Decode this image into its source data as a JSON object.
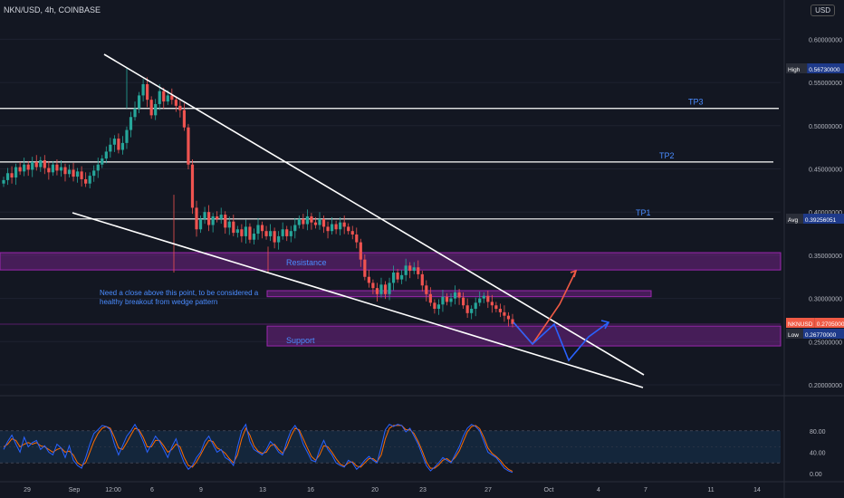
{
  "header": {
    "symbol": "NKN/USD, 4h, COINBASE",
    "currency": "USD"
  },
  "colors": {
    "background": "#131722",
    "up": "#26a69a",
    "down": "#ef5350",
    "zone": "#9c27b0",
    "projection_red": "#f05a45",
    "projection_blue": "#2962ff",
    "stoch_k": "#2962ff",
    "stoch_d": "#ff6d00"
  },
  "chart_data": {
    "type": "candlestick",
    "pair": "NKN/USD",
    "interval": "4h",
    "exchange": "COINBASE",
    "y_ticks": [
      "0.60000000",
      "0.55000000",
      "0.50000000",
      "0.45000000",
      "0.40000000",
      "0.35000000",
      "0.30000000",
      "0.25000000",
      "0.20000000"
    ],
    "y_tick_values": [
      0.6,
      0.55,
      0.5,
      0.45,
      0.4,
      0.35,
      0.3,
      0.25,
      0.2
    ],
    "x_ticks": [
      "29",
      "Sep",
      "12:00",
      "6",
      "9",
      "13",
      "16",
      "20",
      "23",
      "27",
      "Oct",
      "4",
      "7",
      "11",
      "14"
    ],
    "price_labels": [
      {
        "tag": "High",
        "value": "0.56730000"
      },
      {
        "tag": "Avg",
        "value": "0.39256051"
      },
      {
        "tag": "NKNUSD",
        "value": "0.27050000"
      },
      {
        "tag": "Low",
        "value": "0.26770000"
      }
    ],
    "levels": {
      "tp3": 0.52,
      "tp2": 0.458,
      "tp1": 0.392
    },
    "level_labels": {
      "tp3": "TP3",
      "tp2": "TP2",
      "tp1": "TP1"
    },
    "zones": {
      "resistance": {
        "label": "Resistance",
        "from": 0.333,
        "to": 0.353
      },
      "breakout": {
        "from": 0.302,
        "to": 0.309
      },
      "support": {
        "label": "Support",
        "from": 0.245,
        "to": 0.268
      }
    },
    "annotation_lines": [
      "Need a close above this point, to be considered a",
      "healthy breakout from wedge pattern"
    ],
    "closes": [
      0.437,
      0.445,
      0.44,
      0.452,
      0.447,
      0.455,
      0.449,
      0.458,
      0.452,
      0.46,
      0.451,
      0.446,
      0.455,
      0.448,
      0.452,
      0.444,
      0.449,
      0.441,
      0.447,
      0.438,
      0.433,
      0.442,
      0.448,
      0.455,
      0.462,
      0.47,
      0.478,
      0.485,
      0.472,
      0.48,
      0.495,
      0.51,
      0.52,
      0.535,
      0.548,
      0.53,
      0.512,
      0.525,
      0.54,
      0.528,
      0.535,
      0.53,
      0.523,
      0.518,
      0.498,
      0.455,
      0.405,
      0.38,
      0.392,
      0.4,
      0.385,
      0.395,
      0.392,
      0.397,
      0.382,
      0.389,
      0.376,
      0.38,
      0.372,
      0.383,
      0.368,
      0.375,
      0.385,
      0.378,
      0.372,
      0.378,
      0.365,
      0.372,
      0.38,
      0.372,
      0.378,
      0.385,
      0.392,
      0.386,
      0.395,
      0.388,
      0.385,
      0.392,
      0.383,
      0.378,
      0.386,
      0.38,
      0.388,
      0.383,
      0.378,
      0.374,
      0.365,
      0.345,
      0.325,
      0.318,
      0.312,
      0.305,
      0.316,
      0.305,
      0.318,
      0.33,
      0.322,
      0.327,
      0.338,
      0.332,
      0.336,
      0.328,
      0.315,
      0.305,
      0.295,
      0.288,
      0.293,
      0.302,
      0.296,
      0.3,
      0.307,
      0.301,
      0.292,
      0.283,
      0.288,
      0.295,
      0.3,
      0.303,
      0.296,
      0.292,
      0.288,
      0.284,
      0.28,
      0.276,
      0.2705
    ],
    "stoch_k": [
      45,
      60,
      72,
      55,
      40,
      68,
      50,
      58,
      62,
      45,
      52,
      40,
      35,
      55,
      48,
      30,
      52,
      25,
      15,
      10,
      30,
      55,
      75,
      82,
      90,
      88,
      82,
      55,
      35,
      52,
      70,
      80,
      92,
      78,
      60,
      40,
      55,
      70,
      60,
      45,
      30,
      50,
      65,
      40,
      20,
      8,
      15,
      30,
      40,
      60,
      70,
      55,
      40,
      45,
      30,
      25,
      15,
      50,
      80,
      92,
      60,
      45,
      40,
      35,
      45,
      60,
      52,
      40,
      35,
      60,
      80,
      90,
      78,
      55,
      40,
      25,
      22,
      45,
      62,
      45,
      35,
      20,
      15,
      12,
      25,
      20,
      8,
      15,
      25,
      32,
      25,
      20,
      50,
      82,
      92,
      88,
      92,
      90,
      78,
      85,
      70,
      55,
      35,
      15,
      5,
      12,
      20,
      30,
      25,
      20,
      35,
      50,
      70,
      85,
      92,
      88,
      80,
      60,
      40,
      35,
      30,
      20,
      10,
      5,
      2
    ],
    "stoch_d": [
      50,
      55,
      65,
      62,
      50,
      55,
      58,
      55,
      58,
      52,
      50,
      45,
      40,
      45,
      48,
      40,
      42,
      35,
      20,
      15,
      20,
      40,
      60,
      75,
      85,
      88,
      85,
      68,
      48,
      45,
      58,
      72,
      85,
      82,
      68,
      50,
      50,
      62,
      62,
      52,
      40,
      45,
      55,
      50,
      30,
      15,
      12,
      22,
      35,
      50,
      62,
      60,
      48,
      44,
      38,
      28,
      20,
      35,
      65,
      85,
      72,
      52,
      42,
      38,
      40,
      52,
      55,
      45,
      38,
      50,
      70,
      85,
      82,
      65,
      48,
      32,
      25,
      35,
      52,
      50,
      40,
      28,
      18,
      14,
      20,
      22,
      14,
      12,
      20,
      28,
      28,
      22,
      35,
      65,
      85,
      90,
      90,
      90,
      82,
      82,
      75,
      60,
      42,
      22,
      10,
      10,
      16,
      25,
      28,
      22,
      30,
      42,
      60,
      78,
      88,
      90,
      84,
      68,
      48,
      38,
      32,
      25,
      15,
      8,
      4
    ],
    "stoch_ticks": [
      "80.00",
      "40.00",
      "0.00"
    ],
    "stoch_band": [
      20,
      80
    ]
  }
}
